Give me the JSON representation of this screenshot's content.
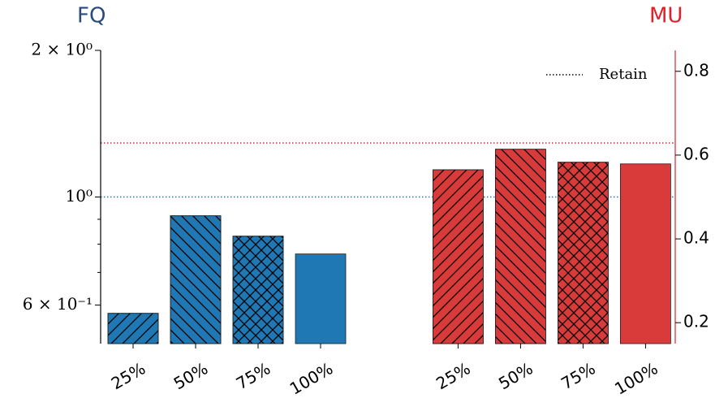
{
  "chart_data": {
    "type": "bar",
    "left_axis_title": "FQ",
    "right_axis_title": "MU",
    "categories": [
      "25%",
      "50%",
      "75%",
      "100%"
    ],
    "hatches": [
      "/",
      "\\",
      "x",
      "none"
    ],
    "series": [
      {
        "name": "FQ",
        "color": "#1f77b4",
        "axis": "y",
        "values": [
          0.577,
          0.915,
          0.831,
          0.764
        ]
      },
      {
        "name": "MU",
        "color": "#d93b3b",
        "axis": "y2",
        "values": [
          0.565,
          0.614,
          0.583,
          0.579
        ]
      }
    ],
    "reference_label": "Retain",
    "reference_lines": [
      {
        "axis": "y",
        "value": 1.0,
        "color": "#1f77b4"
      },
      {
        "axis": "y2",
        "value": 0.629,
        "color": "#d62728"
      }
    ],
    "yscale": "log",
    "ylim": [
      0.5,
      2
    ],
    "yticks": [
      {
        "value": 2,
        "label": "2 × 10⁰"
      },
      {
        "value": 1,
        "label": "10⁰"
      },
      {
        "value": 0.6,
        "label": "6 × 10⁻¹"
      }
    ],
    "yminorticks": [
      0.7,
      0.8,
      0.9
    ],
    "y2lim": [
      0.15,
      0.85
    ],
    "y2ticks": [
      0.2,
      0.4,
      0.6,
      0.8
    ],
    "legend": "upper right"
  }
}
